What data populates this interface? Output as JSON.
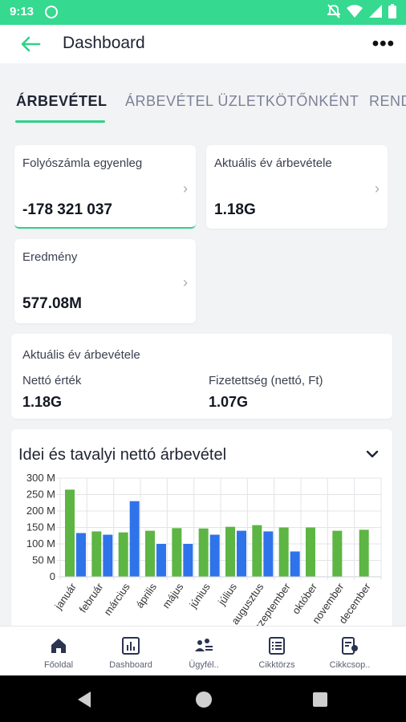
{
  "status": {
    "time": "9:13"
  },
  "appbar": {
    "title": "Dashboard",
    "more": "•••"
  },
  "tabs": [
    "ÁRBEVÉTEL",
    "ÁRBEVÉTEL ÜZLETKÖTŐNKÉNT",
    "REND"
  ],
  "cards": [
    {
      "label": "Folyószámla egyenleg",
      "value": "-178 321 037"
    },
    {
      "label": "Aktuális év árbevétele",
      "value": "1.18G"
    },
    {
      "label": "Eredmény",
      "value": "577.08M"
    }
  ],
  "summary": {
    "title": "Aktuális év árbevétele",
    "net_label": "Nettó érték",
    "net_value": "1.18G",
    "paid_label": "Fizetettség (nettó, Ft)",
    "paid_value": "1.07G"
  },
  "chart": {
    "title": "Idei és tavalyi nettó árbevétel"
  },
  "chart_data": {
    "type": "bar",
    "categories": [
      "január",
      "február",
      "március",
      "április",
      "május",
      "június",
      "július",
      "augusztus",
      "szeptember",
      "október",
      "november",
      "december"
    ],
    "series": [
      {
        "color": "#5db543",
        "values": [
          265,
          138,
          135,
          140,
          148,
          147,
          152,
          157,
          150,
          150,
          140,
          143
        ]
      },
      {
        "color": "#2e73ea",
        "values": [
          133,
          128,
          230,
          100,
          100,
          128,
          140,
          138,
          77,
          0,
          0,
          0
        ]
      }
    ],
    "yticks": [
      "0",
      "50 M",
      "100 M",
      "150 M",
      "200 M",
      "250 M",
      "300 M"
    ],
    "ylim": [
      0,
      300
    ],
    "grid": true
  },
  "bottom_nav": [
    "Főoldal",
    "Dashboard",
    "Ügyfél..",
    "Cikktörzs",
    "Cikkcsop.."
  ]
}
